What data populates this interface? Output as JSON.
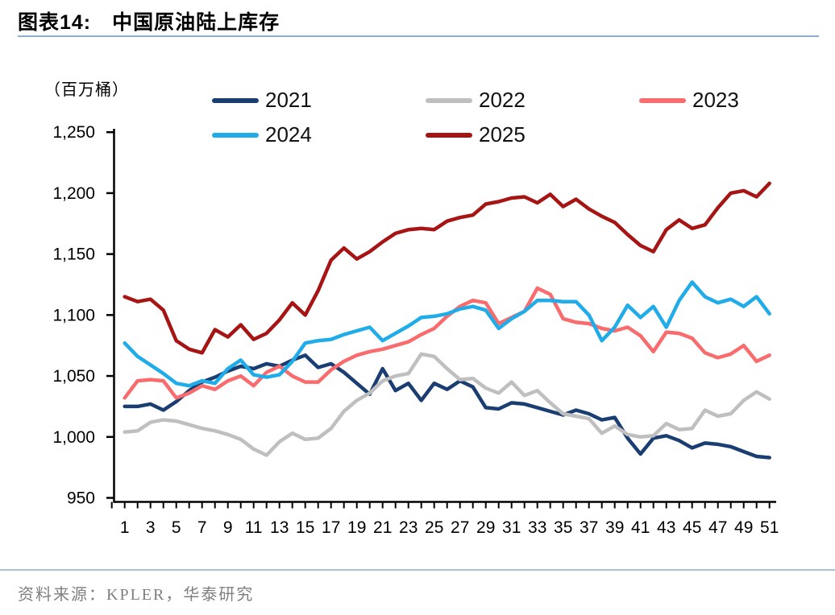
{
  "page": {
    "title_label": "图表14:",
    "title_text": "中国原油陆上库存",
    "source_text": "资料来源：KPLER，华泰研究"
  },
  "chart_data": {
    "type": "line",
    "title": "中国原油陆上库存",
    "unit_label": "（百万桶）",
    "xlabel": "",
    "ylabel": "（百万桶）",
    "legend_position": "top",
    "grid": false,
    "x_axis": {
      "unit": "week",
      "range": [
        1,
        51
      ],
      "tick_labels": [
        "1",
        "3",
        "5",
        "7",
        "9",
        "11",
        "13",
        "15",
        "17",
        "19",
        "21",
        "23",
        "25",
        "27",
        "29",
        "31",
        "33",
        "35",
        "37",
        "39",
        "41",
        "43",
        "45",
        "47",
        "49",
        "51"
      ],
      "tick_label_values": [
        1,
        3,
        5,
        7,
        9,
        11,
        13,
        15,
        17,
        19,
        21,
        23,
        25,
        27,
        29,
        31,
        33,
        35,
        37,
        39,
        41,
        43,
        45,
        47,
        49,
        51
      ]
    },
    "y_axis": {
      "ylim": [
        950,
        1250
      ],
      "tick_labels": [
        "950",
        "1,000",
        "1,050",
        "1,100",
        "1,150",
        "1,200",
        "1,250"
      ],
      "tick_values": [
        950,
        1000,
        1050,
        1100,
        1150,
        1200,
        1250
      ]
    },
    "x": [
      1,
      2,
      3,
      4,
      5,
      6,
      7,
      8,
      9,
      10,
      11,
      12,
      13,
      14,
      15,
      16,
      17,
      18,
      19,
      20,
      21,
      22,
      23,
      24,
      25,
      26,
      27,
      28,
      29,
      30,
      31,
      32,
      33,
      34,
      35,
      36,
      37,
      38,
      39,
      40,
      41,
      42,
      43,
      44,
      45,
      46,
      47,
      48,
      49,
      50,
      51
    ],
    "series": [
      {
        "name": "2021",
        "color": "#1A3E72",
        "values": [
          1025,
          1025,
          1027,
          1022,
          1029,
          1038,
          1045,
          1049,
          1054,
          1058,
          1056,
          1060,
          1058,
          1063,
          1067,
          1057,
          1060,
          1053,
          1044,
          1035,
          1056,
          1038,
          1044,
          1030,
          1044,
          1039,
          1046,
          1041,
          1024,
          1023,
          1028,
          1027,
          1024,
          1021,
          1018,
          1022,
          1019,
          1014,
          1016,
          999,
          986,
          999,
          1001,
          997,
          991,
          995,
          994,
          992,
          988,
          984,
          983
        ]
      },
      {
        "name": "2022",
        "color": "#BFBFBF",
        "values": [
          1004,
          1005,
          1012,
          1014,
          1013,
          1010,
          1007,
          1005,
          1002,
          998,
          990,
          985,
          996,
          1003,
          998,
          999,
          1007,
          1021,
          1030,
          1036,
          1046,
          1050,
          1052,
          1068,
          1066,
          1056,
          1047,
          1048,
          1040,
          1036,
          1045,
          1034,
          1038,
          1028,
          1019,
          1017,
          1015,
          1003,
          1009,
          1002,
          1000,
          1001,
          1011,
          1006,
          1007,
          1022,
          1017,
          1019,
          1030,
          1037,
          1031
        ]
      },
      {
        "name": "2023",
        "color": "#F96C6E",
        "values": [
          1032,
          1046,
          1047,
          1046,
          1032,
          1036,
          1042,
          1039,
          1046,
          1050,
          1042,
          1053,
          1058,
          1050,
          1045,
          1045,
          1055,
          1062,
          1067,
          1070,
          1072,
          1075,
          1078,
          1084,
          1089,
          1099,
          1107,
          1112,
          1110,
          1093,
          1098,
          1103,
          1122,
          1117,
          1097,
          1094,
          1093,
          1089,
          1087,
          1090,
          1083,
          1070,
          1086,
          1085,
          1081,
          1069,
          1065,
          1068,
          1075,
          1062,
          1067
        ]
      },
      {
        "name": "2024",
        "color": "#1FACE8",
        "values": [
          1077,
          1066,
          1059,
          1052,
          1044,
          1042,
          1046,
          1044,
          1056,
          1063,
          1051,
          1049,
          1051,
          1062,
          1077,
          1079,
          1080,
          1084,
          1087,
          1090,
          1079,
          1085,
          1091,
          1098,
          1099,
          1101,
          1105,
          1107,
          1104,
          1089,
          1097,
          1103,
          1112,
          1112,
          1111,
          1111,
          1100,
          1079,
          1090,
          1108,
          1098,
          1107,
          1090,
          1112,
          1127,
          1115,
          1110,
          1113,
          1107,
          1115,
          1101
        ]
      },
      {
        "name": "2025",
        "color": "#A61414",
        "values": [
          1115,
          1111,
          1113,
          1104,
          1079,
          1072,
          1069,
          1088,
          1082,
          1092,
          1080,
          1085,
          1096,
          1110,
          1100,
          1120,
          1145,
          1155,
          1146,
          1152,
          1160,
          1167,
          1170,
          1171,
          1170,
          1177,
          1180,
          1182,
          1191,
          1193,
          1196,
          1197,
          1192,
          1199,
          1189,
          1195,
          1187,
          1181,
          1176,
          1166,
          1157,
          1152,
          1170,
          1178,
          1171,
          1174,
          1188,
          1200,
          1202,
          1197,
          1208
        ]
      }
    ]
  }
}
